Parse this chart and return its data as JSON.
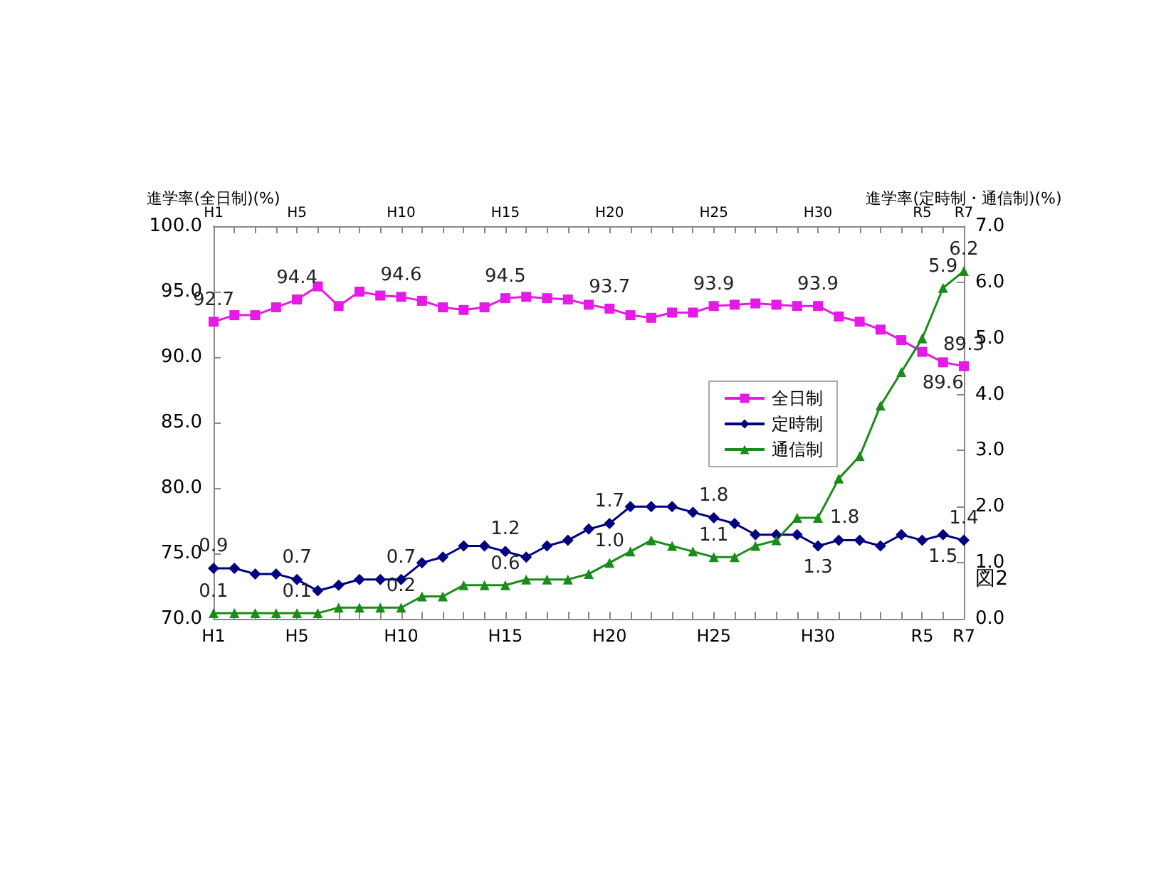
{
  "chart_data": {
    "type": "line",
    "ylabel": "進学率(全日制)(%)",
    "y2label": "進学率(定時制・通信制)(%)",
    "annotations": [
      "図2"
    ],
    "categories": [
      "H1",
      null,
      null,
      null,
      "H5",
      null,
      null,
      null,
      null,
      "H10",
      null,
      null,
      null,
      null,
      "H15",
      null,
      null,
      null,
      null,
      "H20",
      null,
      null,
      null,
      null,
      "H25",
      null,
      null,
      null,
      null,
      "H30",
      null,
      null,
      null,
      null,
      "R5",
      null,
      "R7"
    ],
    "series": [
      {
        "name": "全日制",
        "color": "#e619e6",
        "marker": "square",
        "values": [
          92.7,
          93.2,
          93.2,
          93.8,
          94.4,
          95.4,
          93.9,
          95.0,
          94.7,
          94.6,
          94.3,
          93.8,
          93.6,
          93.8,
          94.5,
          94.6,
          94.5,
          94.4,
          94.0,
          93.7,
          93.2,
          93.0,
          93.4,
          93.4,
          93.9,
          94.0,
          94.1,
          94.0,
          93.9,
          93.9,
          93.1,
          92.7,
          92.1,
          91.3,
          90.4,
          89.6,
          89.3
        ],
        "value_labels": [
          "92.7",
          null,
          null,
          null,
          "94.4",
          null,
          null,
          null,
          null,
          "94.6",
          null,
          null,
          null,
          null,
          "94.5",
          null,
          null,
          null,
          null,
          "93.7",
          null,
          null,
          null,
          null,
          "93.9",
          null,
          null,
          null,
          null,
          "93.9",
          null,
          null,
          null,
          null,
          null,
          "89.6",
          "89.3"
        ]
      },
      {
        "name": "定時制",
        "color": "#000080",
        "marker": "diamond",
        "axis": "y2",
        "values": [
          0.9,
          0.9,
          0.8,
          0.8,
          0.7,
          0.5,
          0.6,
          0.7,
          0.7,
          0.7,
          1.0,
          1.1,
          1.3,
          1.3,
          1.2,
          1.1,
          1.3,
          1.4,
          1.6,
          1.7,
          2.0,
          2.0,
          2.0,
          1.9,
          1.8,
          1.7,
          1.5,
          1.5,
          1.5,
          1.3,
          1.4,
          1.4,
          1.3,
          1.5,
          1.4,
          1.5,
          1.4
        ],
        "value_labels": [
          "0.9",
          null,
          null,
          null,
          "0.7",
          null,
          null,
          null,
          null,
          "0.7",
          null,
          null,
          null,
          null,
          "1.2",
          null,
          null,
          null,
          null,
          "1.7",
          null,
          null,
          null,
          null,
          "1.8",
          null,
          null,
          null,
          null,
          "1.3",
          null,
          null,
          null,
          null,
          null,
          "1.5",
          "1.4"
        ]
      },
      {
        "name": "通信制",
        "color": "#1a8c1a",
        "marker": "triangle",
        "axis": "y2",
        "values": [
          0.1,
          0.1,
          0.1,
          0.1,
          0.1,
          0.1,
          0.2,
          0.2,
          0.2,
          0.2,
          0.4,
          0.4,
          0.6,
          0.6,
          0.6,
          0.7,
          0.7,
          0.7,
          0.8,
          1.0,
          1.2,
          1.4,
          1.3,
          1.2,
          1.1,
          1.1,
          1.3,
          1.4,
          1.8,
          1.8,
          2.5,
          2.9,
          3.8,
          4.4,
          5.0,
          5.9,
          6.2
        ],
        "value_labels": [
          "0.1",
          null,
          null,
          null,
          "0.1",
          null,
          null,
          null,
          null,
          "0.2",
          null,
          null,
          null,
          null,
          "0.6",
          null,
          null,
          null,
          null,
          "1.0",
          null,
          null,
          null,
          null,
          "1.1",
          null,
          null,
          null,
          null,
          "1.8",
          null,
          null,
          null,
          null,
          null,
          "5.9",
          "6.2"
        ]
      }
    ],
    "ylim": [
      70,
      100
    ],
    "yticks": [
      {
        "value": 70,
        "label": "70.0"
      },
      {
        "value": 75,
        "label": "75.0"
      },
      {
        "value": 80,
        "label": "80.0"
      },
      {
        "value": 85,
        "label": "85.0"
      },
      {
        "value": 90,
        "label": "90.0"
      },
      {
        "value": 95,
        "label": "95.0"
      },
      {
        "value": 100,
        "label": "100.0"
      }
    ],
    "y2lim": [
      0,
      7
    ],
    "y2ticks": [
      {
        "value": 0,
        "label": "0.0"
      },
      {
        "value": 1,
        "label": "1.0"
      },
      {
        "value": 2,
        "label": "2.0"
      },
      {
        "value": 3,
        "label": "3.0"
      },
      {
        "value": 4,
        "label": "4.0"
      },
      {
        "value": 5,
        "label": "5.0"
      },
      {
        "value": 6,
        "label": "6.0"
      },
      {
        "value": 7,
        "label": "7.0"
      }
    ],
    "grid": false,
    "legend": "right",
    "line_style": "solid"
  }
}
